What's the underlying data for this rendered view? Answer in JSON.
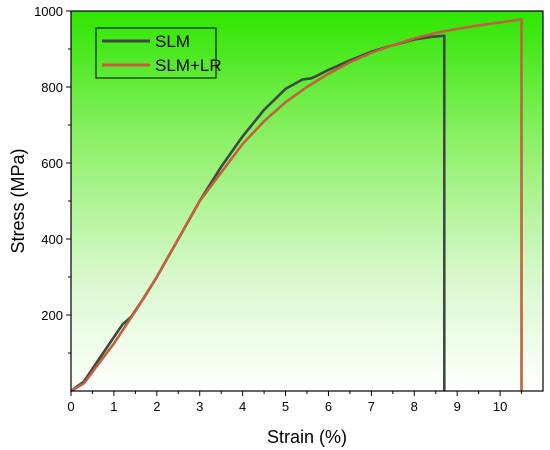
{
  "chart_data": {
    "type": "line",
    "xlabel": "Strain (%)",
    "ylabel": "Stress (MPa)",
    "xlim": [
      0,
      11
    ],
    "ylim": [
      0,
      1000
    ],
    "x_ticks": [
      0,
      1,
      2,
      3,
      4,
      5,
      6,
      7,
      8,
      9,
      10
    ],
    "y_ticks": [
      200,
      400,
      600,
      800,
      1000
    ],
    "grid": false,
    "background": "vertical gradient, bright green at top fading to white at bottom",
    "legend_position": "top-left",
    "series": [
      {
        "name": "SLM",
        "color": "#3d4a40",
        "x": [
          0,
          0.3,
          0.6,
          0.9,
          1.2,
          1.4,
          1.7,
          2.0,
          2.5,
          3.0,
          3.5,
          4.0,
          4.5,
          5.0,
          5.4,
          5.6,
          5.65,
          6.0,
          6.5,
          7.0,
          7.5,
          8.0,
          8.4,
          8.7,
          8.7,
          8.7
        ],
        "y": [
          0,
          25,
          75,
          125,
          175,
          195,
          245,
          300,
          400,
          500,
          590,
          670,
          740,
          795,
          820,
          823,
          825,
          845,
          870,
          893,
          910,
          925,
          932,
          935,
          600,
          0
        ]
      },
      {
        "name": "SLM+LR",
        "color": "#c2603f",
        "x": [
          0,
          0.3,
          0.6,
          1.0,
          1.5,
          2.0,
          2.5,
          3.0,
          3.5,
          4.0,
          4.5,
          5.0,
          5.5,
          6.0,
          6.5,
          7.0,
          7.5,
          8.0,
          8.5,
          9.0,
          9.5,
          10.0,
          10.5,
          10.5,
          10.5
        ],
        "y": [
          0,
          20,
          65,
          125,
          210,
          300,
          400,
          500,
          575,
          650,
          710,
          760,
          800,
          835,
          865,
          890,
          910,
          928,
          942,
          953,
          962,
          970,
          978,
          500,
          0
        ]
      }
    ]
  }
}
